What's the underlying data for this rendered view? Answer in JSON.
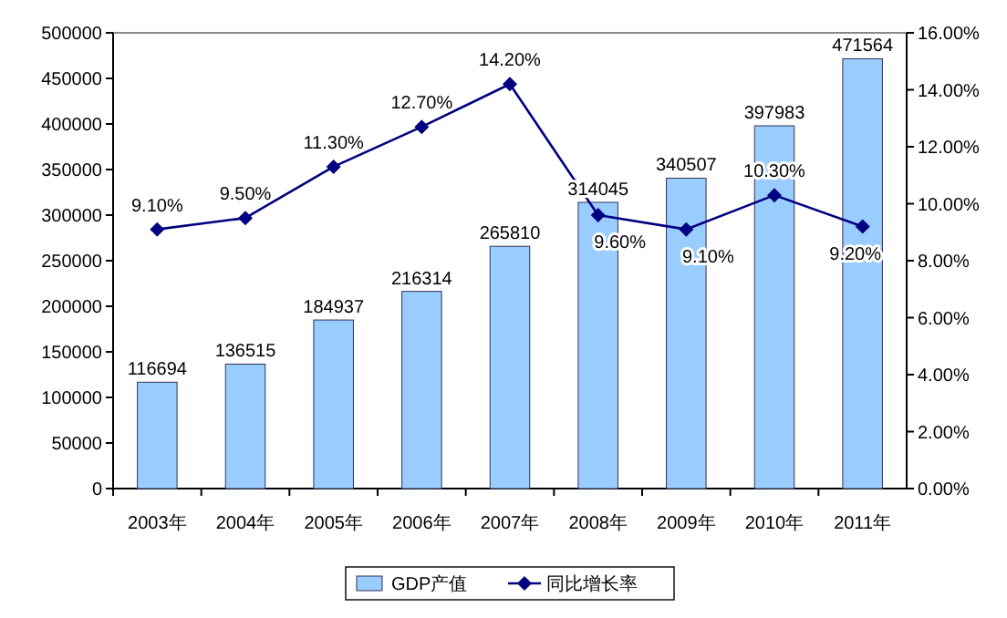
{
  "chart_data": {
    "type": "bar",
    "categories": [
      "2003年",
      "2004年",
      "2005年",
      "2006年",
      "2007年",
      "2008年",
      "2009年",
      "2010年",
      "2011年"
    ],
    "series": [
      {
        "name": "GDP产值",
        "color": "#99ccff",
        "values": [
          116694,
          136515,
          184937,
          216314,
          265810,
          314045,
          340507,
          397983,
          471564
        ],
        "value_labels": [
          "116694",
          "136515",
          "184937",
          "216314",
          "265810",
          "314045",
          "340507",
          "397983",
          "471564"
        ]
      },
      {
        "name": "同比增长率",
        "type": "line",
        "axis": "y2",
        "color": "#000080",
        "values": [
          9.1,
          9.5,
          11.3,
          12.7,
          14.2,
          9.6,
          9.1,
          10.3,
          9.2
        ],
        "value_labels": [
          "9.10%",
          "9.50%",
          "11.30%",
          "12.70%",
          "14.20%",
          "9.60%",
          "9.10%",
          "10.30%",
          "9.20%"
        ]
      }
    ],
    "ylim": [
      0,
      500000
    ],
    "yticks": [
      0,
      50000,
      100000,
      150000,
      200000,
      250000,
      300000,
      350000,
      400000,
      450000,
      500000
    ],
    "y2lim": [
      0,
      16
    ],
    "y2ticks": [
      {
        "value": 0,
        "label": "0.00%"
      },
      {
        "value": 2,
        "label": "2.00%"
      },
      {
        "value": 4,
        "label": "4.00%"
      },
      {
        "value": 6,
        "label": "6.00%"
      },
      {
        "value": 8,
        "label": "8.00%"
      },
      {
        "value": 10,
        "label": "10.00%"
      },
      {
        "value": 12,
        "label": "12.00%"
      },
      {
        "value": 14,
        "label": "14.00%"
      },
      {
        "value": 16,
        "label": "16.00%"
      }
    ],
    "marker": "diamond",
    "legend": "bottom",
    "grid": false
  }
}
